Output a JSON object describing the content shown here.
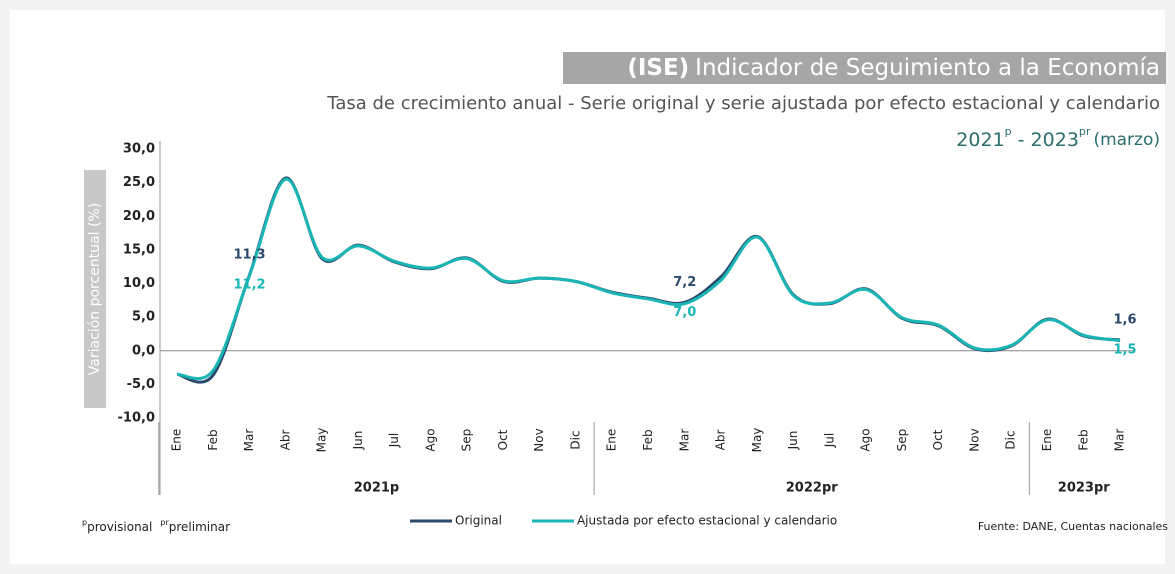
{
  "chart_data": {
    "type": "line",
    "title_tag": "(ISE)",
    "title": "Indicador de Seguimiento a la Economía",
    "subtitle": "Tasa de crecimiento anual - Serie original y serie ajustada por efecto estacional y calendario",
    "period": [
      "2021",
      "p",
      " - 2023",
      "pr",
      "(marzo)"
    ],
    "y_label": "Variación porcentual (%)",
    "groups": [
      {
        "label": "2021p",
        "categories": [
          "Ene",
          "Feb",
          "Mar",
          "Abr",
          "May",
          "Jun",
          "Jul",
          "Ago",
          "Sep",
          "Oct",
          "Nov",
          "Dic"
        ]
      },
      {
        "label": "2022pr",
        "categories": [
          "Ene",
          "Feb",
          "Mar",
          "Abr",
          "May",
          "Jun",
          "Jul",
          "Ago",
          "Sep",
          "Oct",
          "Nov",
          "Dic"
        ]
      },
      {
        "label": "2023pr",
        "categories": [
          "Ene",
          "Feb",
          "Mar"
        ]
      }
    ],
    "series": [
      {
        "name": "Original",
        "color": "#2b4a6b",
        "values": [
          -3.5,
          -3.6,
          11.3,
          25.7,
          13.7,
          15.7,
          13.2,
          12.2,
          13.8,
          10.3,
          10.8,
          10.3,
          8.7,
          7.8,
          7.2,
          11.0,
          17.0,
          8.3,
          7.0,
          9.2,
          4.8,
          3.7,
          0.3,
          0.7,
          4.7,
          2.2,
          1.6
        ],
        "value_labels": [
          null,
          null,
          "11,3",
          null,
          null,
          null,
          null,
          null,
          null,
          null,
          null,
          null,
          null,
          null,
          "7,2",
          null,
          null,
          null,
          null,
          null,
          null,
          null,
          null,
          null,
          null,
          null,
          "1,6"
        ]
      },
      {
        "name": "Ajustada por efecto estacional y calendario",
        "color": "#1ab5b5",
        "values": [
          -3.5,
          -2.9,
          11.2,
          25.5,
          13.9,
          15.6,
          13.3,
          12.3,
          13.7,
          10.4,
          10.8,
          10.3,
          8.6,
          7.7,
          7.0,
          10.5,
          16.9,
          8.2,
          7.1,
          9.1,
          4.9,
          3.8,
          0.4,
          0.8,
          4.6,
          2.3,
          1.5
        ],
        "value_labels": [
          null,
          null,
          "11,2",
          null,
          null,
          null,
          null,
          null,
          null,
          null,
          null,
          null,
          null,
          null,
          "7,0",
          null,
          null,
          null,
          null,
          null,
          null,
          null,
          null,
          null,
          null,
          null,
          "1,5"
        ]
      }
    ],
    "ylim": [
      -10,
      30
    ],
    "yticks": [
      {
        "value": -10,
        "label": "-10,0"
      },
      {
        "value": -5,
        "label": "-5,0"
      },
      {
        "value": 0,
        "label": "0,0"
      },
      {
        "value": 5,
        "label": "5,0"
      },
      {
        "value": 10,
        "label": "10,0"
      },
      {
        "value": 15,
        "label": "15,0"
      },
      {
        "value": 20,
        "label": "20,0"
      },
      {
        "value": 25,
        "label": "25,0"
      },
      {
        "value": 30,
        "label": "30,0"
      }
    ],
    "footnotes": [
      {
        "mark": "p",
        "text": "provisional"
      },
      {
        "mark": "pr",
        "text": "preliminar"
      }
    ],
    "source": "Fuente: DANE, Cuentas nacionales"
  }
}
